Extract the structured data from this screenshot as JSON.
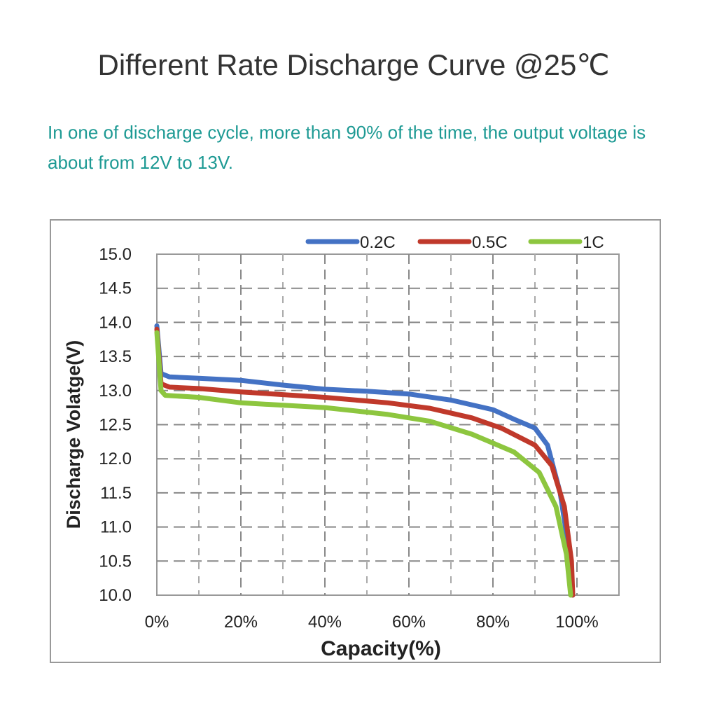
{
  "title": "Different Rate Discharge Curve @25℃",
  "subtitle": "In one of discharge cycle, more than 90% of the time, the output voltage is about from 12V to 13V.",
  "chart_data": {
    "type": "line",
    "xlabel": "Capacity(%)",
    "ylabel": "Discharge Volatge(V)",
    "xlim": [
      0,
      110
    ],
    "ylim": [
      10,
      15
    ],
    "grid": true,
    "legend_position": "top-right",
    "x_ticks": [
      0,
      20,
      40,
      60,
      80,
      100
    ],
    "x_tick_labels": [
      "0%",
      "20%",
      "40%",
      "60%",
      "80%",
      "100%"
    ],
    "y_ticks": [
      10,
      10.5,
      11,
      11.5,
      12,
      12.5,
      13,
      13.5,
      14,
      14.5,
      15
    ],
    "y_tick_labels": [
      "10.0",
      "10.5",
      "11.0",
      "11.5",
      "12.0",
      "12.5",
      "13.0",
      "13.5",
      "14.0",
      "14.5",
      "15.0"
    ],
    "series": [
      {
        "name": "0.2C",
        "color": "#4472c4",
        "x": [
          0,
          1,
          3,
          10,
          20,
          30,
          35,
          40,
          50,
          60,
          70,
          80,
          85,
          90,
          93,
          96,
          98.5,
          99
        ],
        "y": [
          13.95,
          13.25,
          13.2,
          13.18,
          13.15,
          13.08,
          13.05,
          13.02,
          12.99,
          12.95,
          12.86,
          12.72,
          12.58,
          12.45,
          12.2,
          11.5,
          10.5,
          10.0
        ]
      },
      {
        "name": "0.5C",
        "color": "#c0392b",
        "x": [
          0,
          1,
          3,
          10,
          20,
          40,
          55,
          65,
          75,
          82,
          90,
          94,
          97,
          98.7,
          99
        ],
        "y": [
          13.9,
          13.1,
          13.05,
          13.03,
          12.98,
          12.9,
          12.82,
          12.74,
          12.6,
          12.45,
          12.2,
          11.9,
          11.3,
          10.5,
          10.0
        ]
      },
      {
        "name": "1C",
        "color": "#8dc63f",
        "x": [
          0,
          1,
          2,
          10,
          20,
          40,
          55,
          65,
          75,
          85,
          91,
          95,
          97.5,
          98.5
        ],
        "y": [
          13.85,
          13.0,
          12.93,
          12.9,
          12.82,
          12.75,
          12.65,
          12.55,
          12.36,
          12.1,
          11.8,
          11.3,
          10.6,
          10.0
        ]
      }
    ]
  }
}
